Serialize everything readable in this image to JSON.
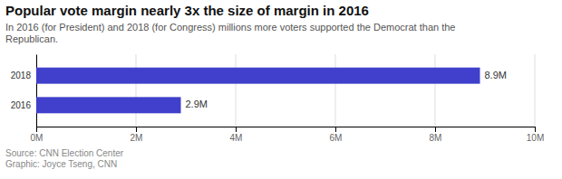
{
  "chart_data": {
    "type": "bar",
    "orientation": "horizontal",
    "title": "Popular vote margin nearly 3x the size of margin in 2016",
    "subtitle": "In 2016 (for President) and 2018 (for Congress) millions more voters supported the Democrat than the\nRepublican.",
    "source": "Source: CNN Election Center\nGraphic: Joyce Tseng, CNN",
    "categories": [
      "2016",
      "2018"
    ],
    "values": [
      2900000,
      8900000
    ],
    "value_labels": [
      "2.9M",
      "8.9M"
    ],
    "data_labels": true,
    "color": "#4040cc",
    "xlim": [
      0,
      10000000
    ],
    "xticks": [
      {
        "value": 0,
        "label": "0M"
      },
      {
        "value": 2000000,
        "label": "2M"
      },
      {
        "value": 4000000,
        "label": "4M"
      },
      {
        "value": 6000000,
        "label": "6M"
      },
      {
        "value": 8000000,
        "label": "8M"
      },
      {
        "value": 10000000,
        "label": "10M"
      }
    ],
    "grid": true
  }
}
